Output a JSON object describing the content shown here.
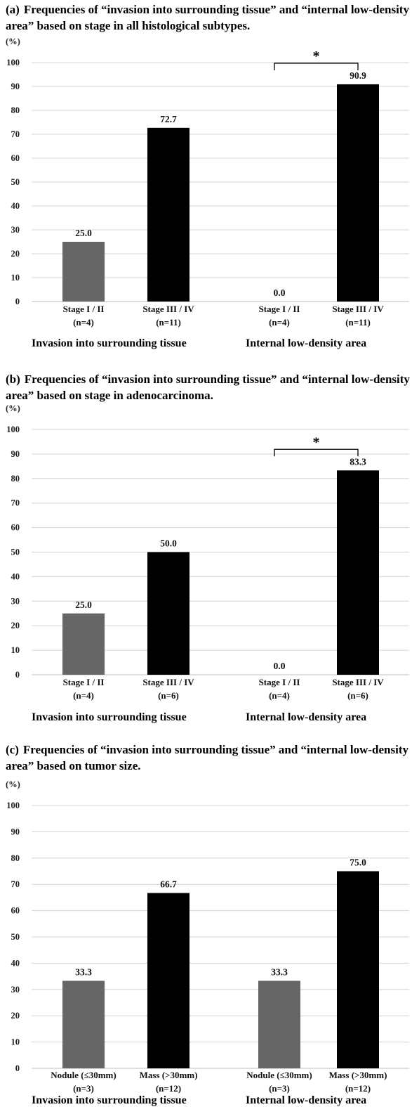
{
  "chart_data": [
    {
      "type": "bar",
      "panel_label": "(a)",
      "title": "Frequencies of “invasion into surrounding tissue” and “internal low-density area” based on stage in all histological subtypes.",
      "ylabel": "(%)",
      "ylim": [
        0,
        100
      ],
      "yticks": [
        0,
        10,
        20,
        30,
        40,
        50,
        60,
        70,
        80,
        90,
        100
      ],
      "grid": true,
      "groups": [
        {
          "name": "Invasion into surrounding tissue",
          "bars": [
            {
              "label": "Stage I / II",
              "n": "(n=4)",
              "value": 25.0,
              "value_label": "25.0",
              "color": "#666666"
            },
            {
              "label": "Stage III / IV",
              "n": "(n=11)",
              "value": 72.7,
              "value_label": "72.7",
              "color": "#000000"
            }
          ],
          "significance": ""
        },
        {
          "name": "Internal low-density area",
          "bars": [
            {
              "label": "Stage I / II",
              "n": "(n=4)",
              "value": 0.0,
              "value_label": "0.0",
              "color": "#666666"
            },
            {
              "label": "Stage III / IV",
              "n": "(n=11)",
              "value": 90.9,
              "value_label": "90.9",
              "color": "#000000"
            }
          ],
          "significance": "*"
        }
      ]
    },
    {
      "type": "bar",
      "panel_label": "(b)",
      "title": "Frequencies of “invasion into surrounding tissue” and “internal low-density area” based on stage in adenocarcinoma.",
      "ylabel": "(%)",
      "ylim": [
        0,
        100
      ],
      "yticks": [
        0,
        10,
        20,
        30,
        40,
        50,
        60,
        70,
        80,
        90,
        100
      ],
      "grid": true,
      "groups": [
        {
          "name": "Invasion into surrounding tissue",
          "bars": [
            {
              "label": "Stage I / II",
              "n": "(n=4)",
              "value": 25.0,
              "value_label": "25.0",
              "color": "#666666"
            },
            {
              "label": "Stage III / IV",
              "n": "(n=6)",
              "value": 50.0,
              "value_label": "50.0",
              "color": "#000000"
            }
          ],
          "significance": ""
        },
        {
          "name": "Internal low-density area",
          "bars": [
            {
              "label": "Stage I / II",
              "n": "(n=4)",
              "value": 0.0,
              "value_label": "0.0",
              "color": "#666666"
            },
            {
              "label": "Stage III / IV",
              "n": "(n=6)",
              "value": 83.3,
              "value_label": "83.3",
              "color": "#000000"
            }
          ],
          "significance": "*"
        }
      ]
    },
    {
      "type": "bar",
      "panel_label": "(c)",
      "title": "Frequencies of “invasion into surrounding tissue” and “internal low-density area” based on tumor size.",
      "ylabel": "(%)",
      "ylim": [
        0,
        100
      ],
      "yticks": [
        0,
        10,
        20,
        30,
        40,
        50,
        60,
        70,
        80,
        90,
        100
      ],
      "grid": true,
      "groups": [
        {
          "name": "Invasion into surrounding tissue",
          "bars": [
            {
              "label": "Nodule (≤30mm)",
              "n": "(n=3)",
              "value": 33.3,
              "value_label": "33.3",
              "color": "#666666"
            },
            {
              "label": "Mass (>30mm)",
              "n": "(n=12)",
              "value": 66.7,
              "value_label": "66.7",
              "color": "#000000"
            }
          ],
          "significance": ""
        },
        {
          "name": "Internal low-density area",
          "bars": [
            {
              "label": "Nodule (≤30mm)",
              "n": "(n=3)",
              "value": 33.3,
              "value_label": "33.3",
              "color": "#666666"
            },
            {
              "label": "Mass (>30mm)",
              "n": "(n=12)",
              "value": 75.0,
              "value_label": "75.0",
              "color": "#000000"
            }
          ],
          "significance": ""
        }
      ]
    }
  ]
}
